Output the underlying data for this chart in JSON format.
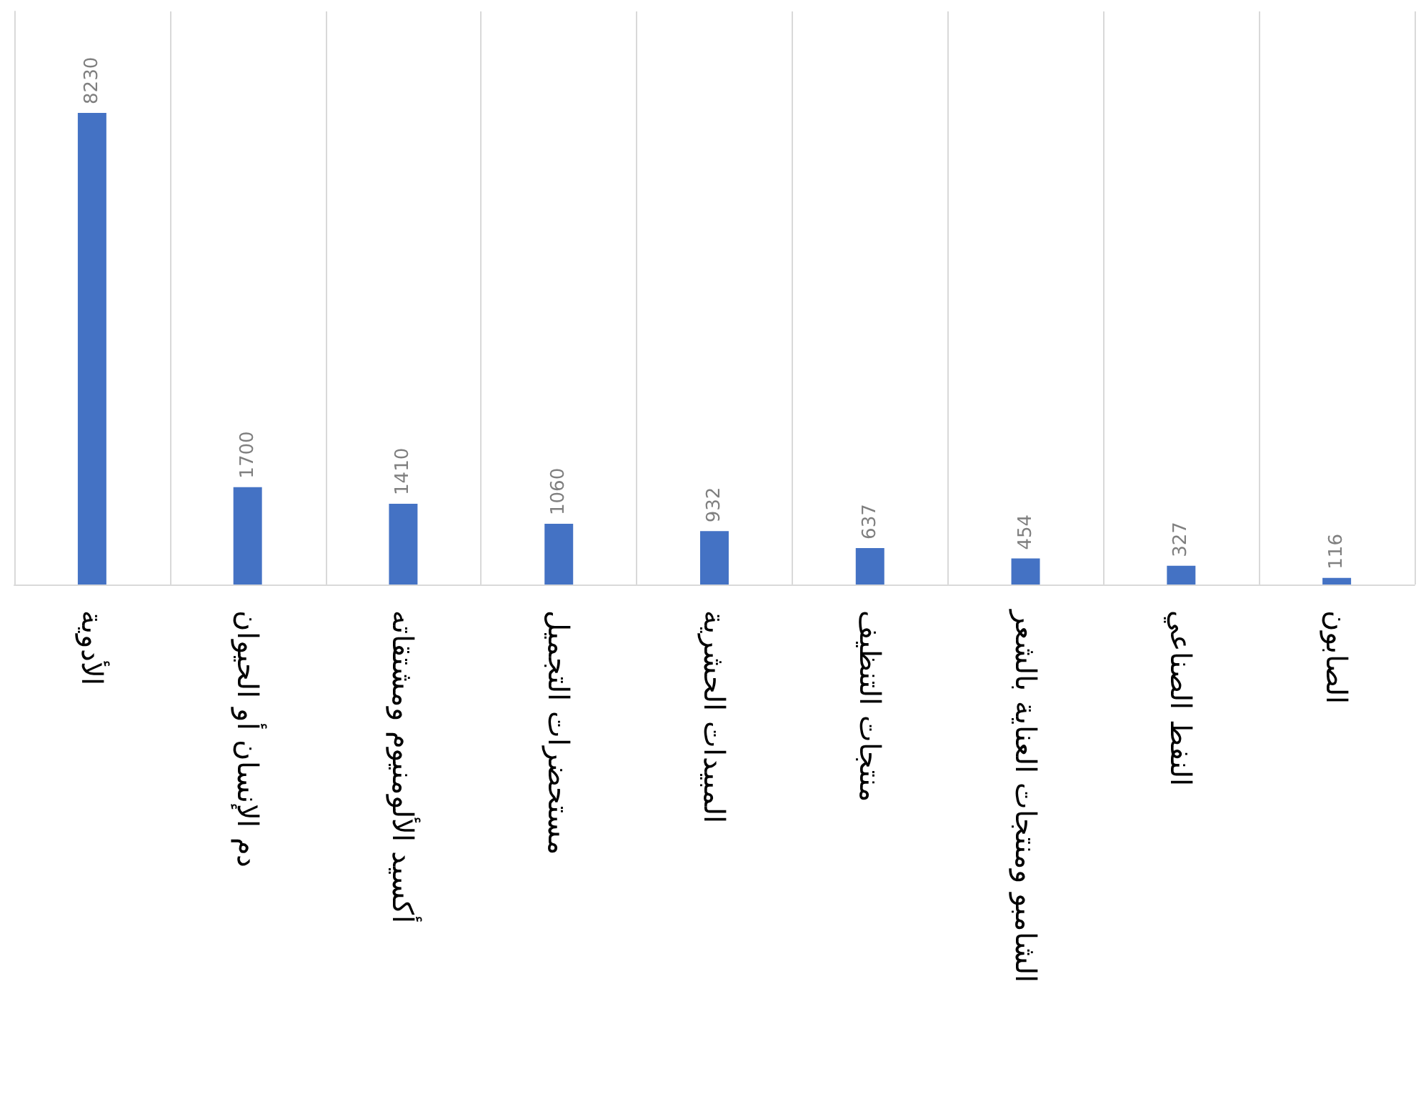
{
  "chart_data": {
    "type": "bar",
    "categories": [
      "الأدوية",
      "دم الإنسان أو الحيوان",
      "أكسيد الألومنيوم ومشتقاته",
      "مستحضرات التجميل",
      "المبيدات الحشرية",
      "منتجات التنظيف",
      "الشامبو ومنتجات العناية بالشعر",
      "النفط الصناعي",
      "الصابون"
    ],
    "values": [
      8230,
      1700,
      1410,
      1060,
      932,
      637,
      454,
      327,
      116
    ],
    "color": "#4472c4",
    "data_labels": true,
    "grid": "x",
    "tick_labels": "x"
  }
}
